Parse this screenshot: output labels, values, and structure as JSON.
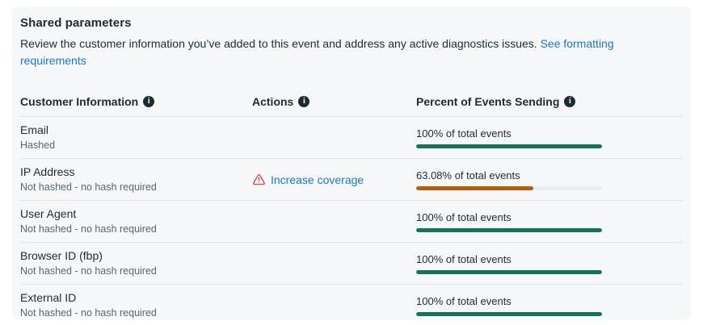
{
  "card": {
    "title": "Shared parameters",
    "description": "Review the customer information you’ve added to this event and address any active diagnostics issues.",
    "description_link": "See formatting requirements"
  },
  "table": {
    "columns": [
      {
        "label": "Customer Information"
      },
      {
        "label": "Actions"
      },
      {
        "label": "Percent of Events Sending"
      }
    ],
    "rows": [
      {
        "name": "Email",
        "hash_status": "Hashed",
        "action": null,
        "percent_label": "100% of total events",
        "percent": 100,
        "bar_color": "#137358"
      },
      {
        "name": "IP Address",
        "hash_status": "Not hashed - no hash required",
        "action": "Increase coverage",
        "percent_label": "63.08% of total events",
        "percent": 63.08,
        "bar_color": "#b65c0d"
      },
      {
        "name": "User Agent",
        "hash_status": "Not hashed - no hash required",
        "action": null,
        "percent_label": "100% of total events",
        "percent": 100,
        "bar_color": "#137358"
      },
      {
        "name": "Browser ID (fbp)",
        "hash_status": "Not hashed - no hash required",
        "action": null,
        "percent_label": "100% of total events",
        "percent": 100,
        "bar_color": "#137358"
      },
      {
        "name": "External ID",
        "hash_status": "Not hashed - no hash required",
        "action": null,
        "percent_label": "100% of total events",
        "percent": 100,
        "bar_color": "#137358"
      }
    ]
  },
  "colors": {
    "card_bg": "#f6f7f9",
    "text_primary": "#1c2b33",
    "text_secondary": "#5a6672",
    "link_blue": "#1b78c4",
    "success_green": "#137358",
    "warning_orange": "#b65c0d",
    "warning_red": "#d2434d",
    "track_gray": "#eaeef0"
  }
}
